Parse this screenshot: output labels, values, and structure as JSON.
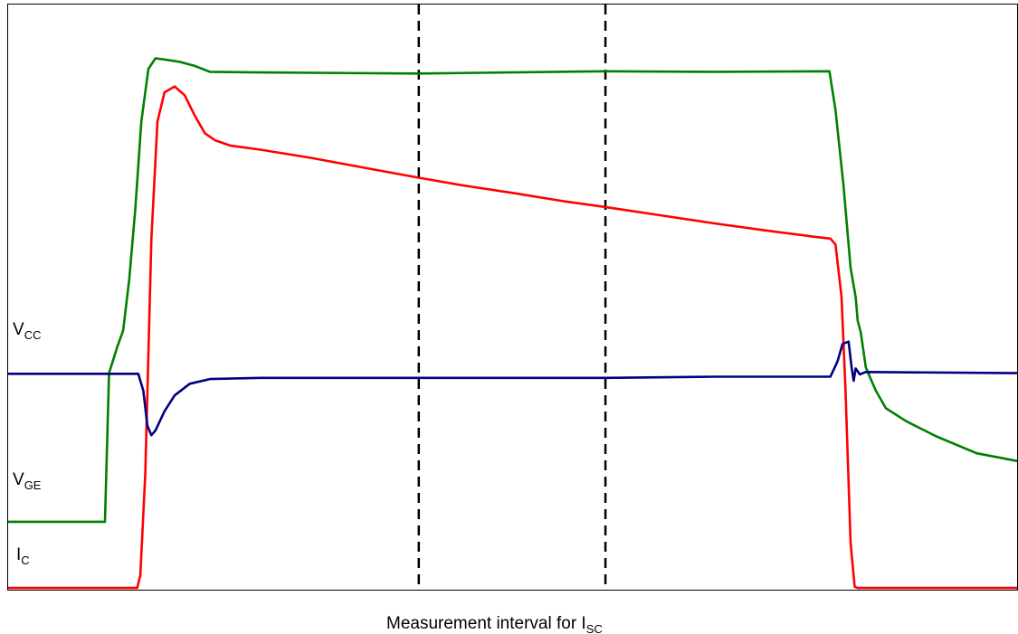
{
  "chart_data": {
    "type": "line",
    "title": "",
    "x_caption": {
      "text": "Measurement interval for I",
      "sub": "SC"
    },
    "signal_labels": [
      {
        "main": "V",
        "sub": "CC"
      },
      {
        "main": "V",
        "sub": "GE"
      },
      {
        "main": "I",
        "sub": "C"
      }
    ],
    "xlim": [
      0,
      100
    ],
    "ylim": [
      0,
      100
    ],
    "grid": false,
    "legend": "none",
    "markers": [
      {
        "name": "interval-start",
        "x": 40.7,
        "style": "dashed",
        "color": "#000000"
      },
      {
        "name": "interval-end",
        "x": 59.2,
        "style": "dashed",
        "color": "#000000"
      }
    ],
    "series": [
      {
        "color": "#008000",
        "points": [
          [
            0,
            11.6
          ],
          [
            9.6,
            11.6
          ],
          [
            10.0,
            37
          ],
          [
            10.8,
            41.4
          ],
          [
            11.4,
            44.3
          ],
          [
            12.0,
            53
          ],
          [
            12.6,
            65
          ],
          [
            13.2,
            80
          ],
          [
            13.9,
            89
          ],
          [
            14.6,
            90.8
          ],
          [
            15.5,
            90.6
          ],
          [
            17.0,
            90.2
          ],
          [
            18.5,
            89.5
          ],
          [
            20.0,
            88.5
          ],
          [
            25.0,
            88.4
          ],
          [
            40.7,
            88.2
          ],
          [
            59.2,
            88.6
          ],
          [
            70.0,
            88.5
          ],
          [
            81.4,
            88.6
          ],
          [
            82.0,
            82
          ],
          [
            82.8,
            69
          ],
          [
            83.5,
            55
          ],
          [
            84.0,
            50
          ],
          [
            84.2,
            46
          ],
          [
            84.5,
            44
          ],
          [
            85.0,
            38
          ],
          [
            85.5,
            36
          ],
          [
            86.0,
            34
          ],
          [
            87.0,
            31
          ],
          [
            89.0,
            28.8
          ],
          [
            92.0,
            26.2
          ],
          [
            96.0,
            23.3
          ],
          [
            100.0,
            22.0
          ]
        ]
      },
      {
        "color": "#ff0000",
        "points": [
          [
            0,
            0.3
          ],
          [
            12.8,
            0.3
          ],
          [
            13.1,
            2.5
          ],
          [
            13.6,
            20
          ],
          [
            14.2,
            60
          ],
          [
            14.8,
            80
          ],
          [
            15.5,
            85
          ],
          [
            16.5,
            86
          ],
          [
            17.5,
            84.5
          ],
          [
            18.5,
            81
          ],
          [
            19.5,
            78
          ],
          [
            20.5,
            76.8
          ],
          [
            22.0,
            75.9
          ],
          [
            25.0,
            75.2
          ],
          [
            30.0,
            73.8
          ],
          [
            35.0,
            72.2
          ],
          [
            40.7,
            70.4
          ],
          [
            45.0,
            69.1
          ],
          [
            50.0,
            67.8
          ],
          [
            55.0,
            66.4
          ],
          [
            59.2,
            65.4
          ],
          [
            65.0,
            63.9
          ],
          [
            70.0,
            62.6
          ],
          [
            75.0,
            61.4
          ],
          [
            80.0,
            60.3
          ],
          [
            81.5,
            60.0
          ],
          [
            82.0,
            59.0
          ],
          [
            82.6,
            50
          ],
          [
            83.0,
            34
          ],
          [
            83.5,
            8
          ],
          [
            83.9,
            0.5
          ],
          [
            84.2,
            0.3
          ],
          [
            100.0,
            0.3
          ]
        ]
      },
      {
        "color": "#000080",
        "points": [
          [
            0,
            36.9
          ],
          [
            12.9,
            36.9
          ],
          [
            13.4,
            34
          ],
          [
            13.8,
            28
          ],
          [
            14.2,
            26.4
          ],
          [
            14.6,
            27.2
          ],
          [
            15.5,
            30.5
          ],
          [
            16.5,
            33.2
          ],
          [
            18.0,
            35.2
          ],
          [
            20.0,
            36.0
          ],
          [
            25.0,
            36.2
          ],
          [
            40.7,
            36.2
          ],
          [
            59.2,
            36.2
          ],
          [
            70.0,
            36.4
          ],
          [
            81.5,
            36.4
          ],
          [
            82.2,
            39
          ],
          [
            82.7,
            42
          ],
          [
            83.3,
            42.4
          ],
          [
            83.6,
            38
          ],
          [
            83.8,
            35.7
          ],
          [
            84.0,
            37.8
          ],
          [
            84.4,
            36.8
          ],
          [
            85.0,
            37.2
          ],
          [
            100.0,
            37.0
          ]
        ]
      }
    ]
  }
}
